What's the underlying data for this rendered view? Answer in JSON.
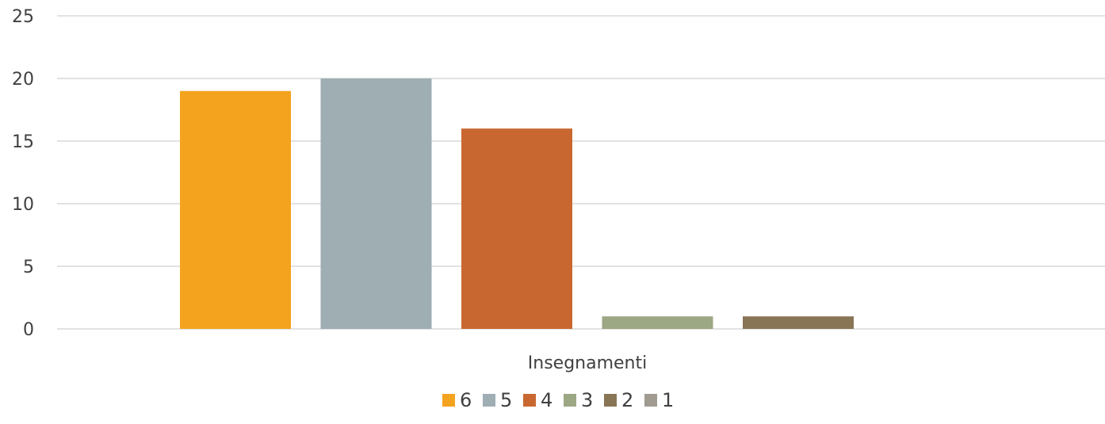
{
  "chart_data": {
    "type": "bar",
    "categories": [
      "Insegnamenti"
    ],
    "series": [
      {
        "name": "6",
        "values": [
          19
        ],
        "color": "#F4A31F"
      },
      {
        "name": "5",
        "values": [
          20
        ],
        "color": "#9EAEB3"
      },
      {
        "name": "4",
        "values": [
          16
        ],
        "color": "#C86830"
      },
      {
        "name": "3",
        "values": [
          1
        ],
        "color": "#9CA783"
      },
      {
        "name": "2",
        "values": [
          1
        ],
        "color": "#887556"
      },
      {
        "name": "1",
        "values": [
          0
        ],
        "color": "#A09A91"
      }
    ],
    "yticks": [
      "0",
      "5",
      "10",
      "15",
      "20",
      "25"
    ],
    "ylim": [
      0,
      25
    ],
    "grid": true,
    "legend_position": "bottom",
    "title": "",
    "xlabel": "",
    "ylabel": ""
  }
}
